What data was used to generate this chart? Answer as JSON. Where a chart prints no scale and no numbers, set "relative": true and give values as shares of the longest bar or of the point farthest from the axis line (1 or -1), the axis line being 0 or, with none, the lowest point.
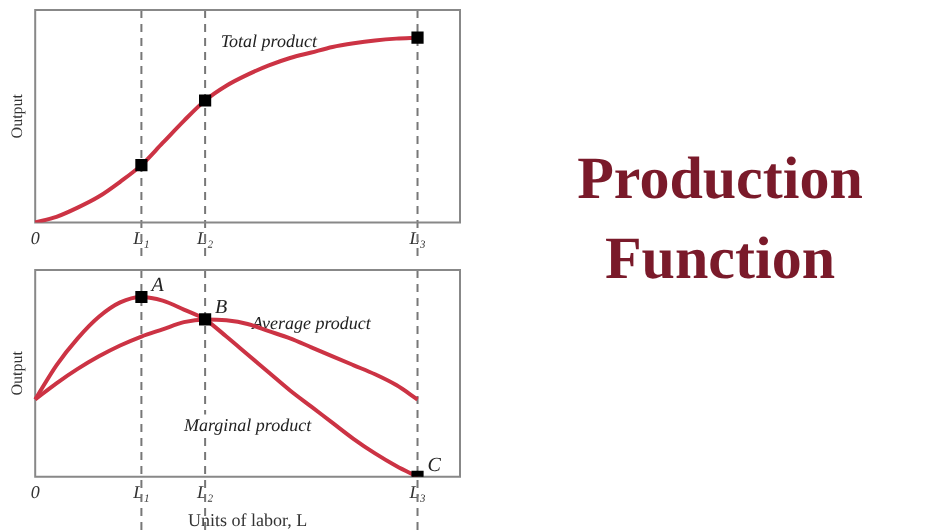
{
  "chart_data": [
    {
      "type": "line",
      "relative": true,
      "ylabel": "Output",
      "tick_labels": "x",
      "legend": false,
      "grid": false,
      "categories": [
        "0",
        null,
        null,
        null,
        null,
        "L₁",
        null,
        null,
        "L₂",
        null,
        null,
        null,
        null,
        null,
        null,
        null,
        null,
        null,
        "L₃",
        null,
        null
      ],
      "series": [
        {
          "name": "Total product",
          "color": "#cc3344",
          "marker": "none",
          "values": [
            0,
            0.03,
            0.08,
            0.14,
            0.22,
            0.31,
            0.43,
            0.55,
            0.66,
            0.74,
            0.8,
            0.85,
            0.89,
            0.92,
            0.95,
            0.97,
            0.985,
            0.995,
            1,
            null,
            null
          ]
        },
        {
          "type": "scatter",
          "color": "#000000",
          "marker": "square",
          "x": [
            "L₁",
            "L₂",
            "L₃"
          ],
          "values": [
            0.31,
            0.66,
            1
          ]
        }
      ],
      "ref_lines": [
        {
          "axis": "x",
          "value": "L₁",
          "color": "#777777",
          "line_style": "dashed"
        },
        {
          "axis": "x",
          "value": "L₂",
          "color": "#777777",
          "line_style": "dashed"
        },
        {
          "axis": "x",
          "value": "L₃",
          "color": "#777777",
          "line_style": "dashed"
        }
      ]
    },
    {
      "type": "line",
      "relative": true,
      "ylabel": "Output",
      "xlabel": "Units of labor, L",
      "tick_labels": "x",
      "legend": false,
      "grid": false,
      "categories": [
        "0",
        null,
        null,
        null,
        null,
        "L₁",
        null,
        null,
        "L₂",
        null,
        null,
        null,
        null,
        null,
        null,
        null,
        null,
        null,
        "L₃",
        null,
        null
      ],
      "series": [
        {
          "name": "Marginal product",
          "color": "#cc3344",
          "marker": "none",
          "values": [
            0.43,
            0.62,
            0.77,
            0.89,
            0.97,
            1,
            0.98,
            0.93,
            0.875,
            0.78,
            0.68,
            0.58,
            0.48,
            0.39,
            0.3,
            0.21,
            0.13,
            0.06,
            0,
            null,
            null
          ]
        },
        {
          "name": "Average product",
          "color": "#cc3344",
          "marker": "none",
          "values": [
            0.43,
            0.52,
            0.6,
            0.67,
            0.73,
            0.78,
            0.82,
            0.86,
            0.875,
            0.87,
            0.85,
            0.81,
            0.77,
            0.72,
            0.67,
            0.62,
            0.57,
            0.51,
            0.43,
            null,
            null
          ]
        },
        {
          "type": "scatter",
          "color": "#000000",
          "marker": "square",
          "x": [
            "L₁",
            "L₂",
            "L₃"
          ],
          "values": [
            1,
            0.875,
            0
          ]
        }
      ],
      "ref_lines": [
        {
          "axis": "x",
          "value": "L₁",
          "color": "#777777",
          "line_style": "dashed"
        },
        {
          "axis": "x",
          "value": "L₂",
          "color": "#777777",
          "line_style": "dashed"
        },
        {
          "axis": "x",
          "value": "L₃",
          "color": "#777777",
          "line_style": "dashed"
        }
      ],
      "annotations": [
        {
          "text": "A",
          "x": "L₁",
          "y": 1
        },
        {
          "text": "B",
          "x": "L₂",
          "y": 0.875
        },
        {
          "text": "C",
          "x": "L₃",
          "y": 0
        }
      ]
    },
    {
      "type": "other",
      "title": "Production Function",
      "color": "#7a1a2a"
    }
  ]
}
